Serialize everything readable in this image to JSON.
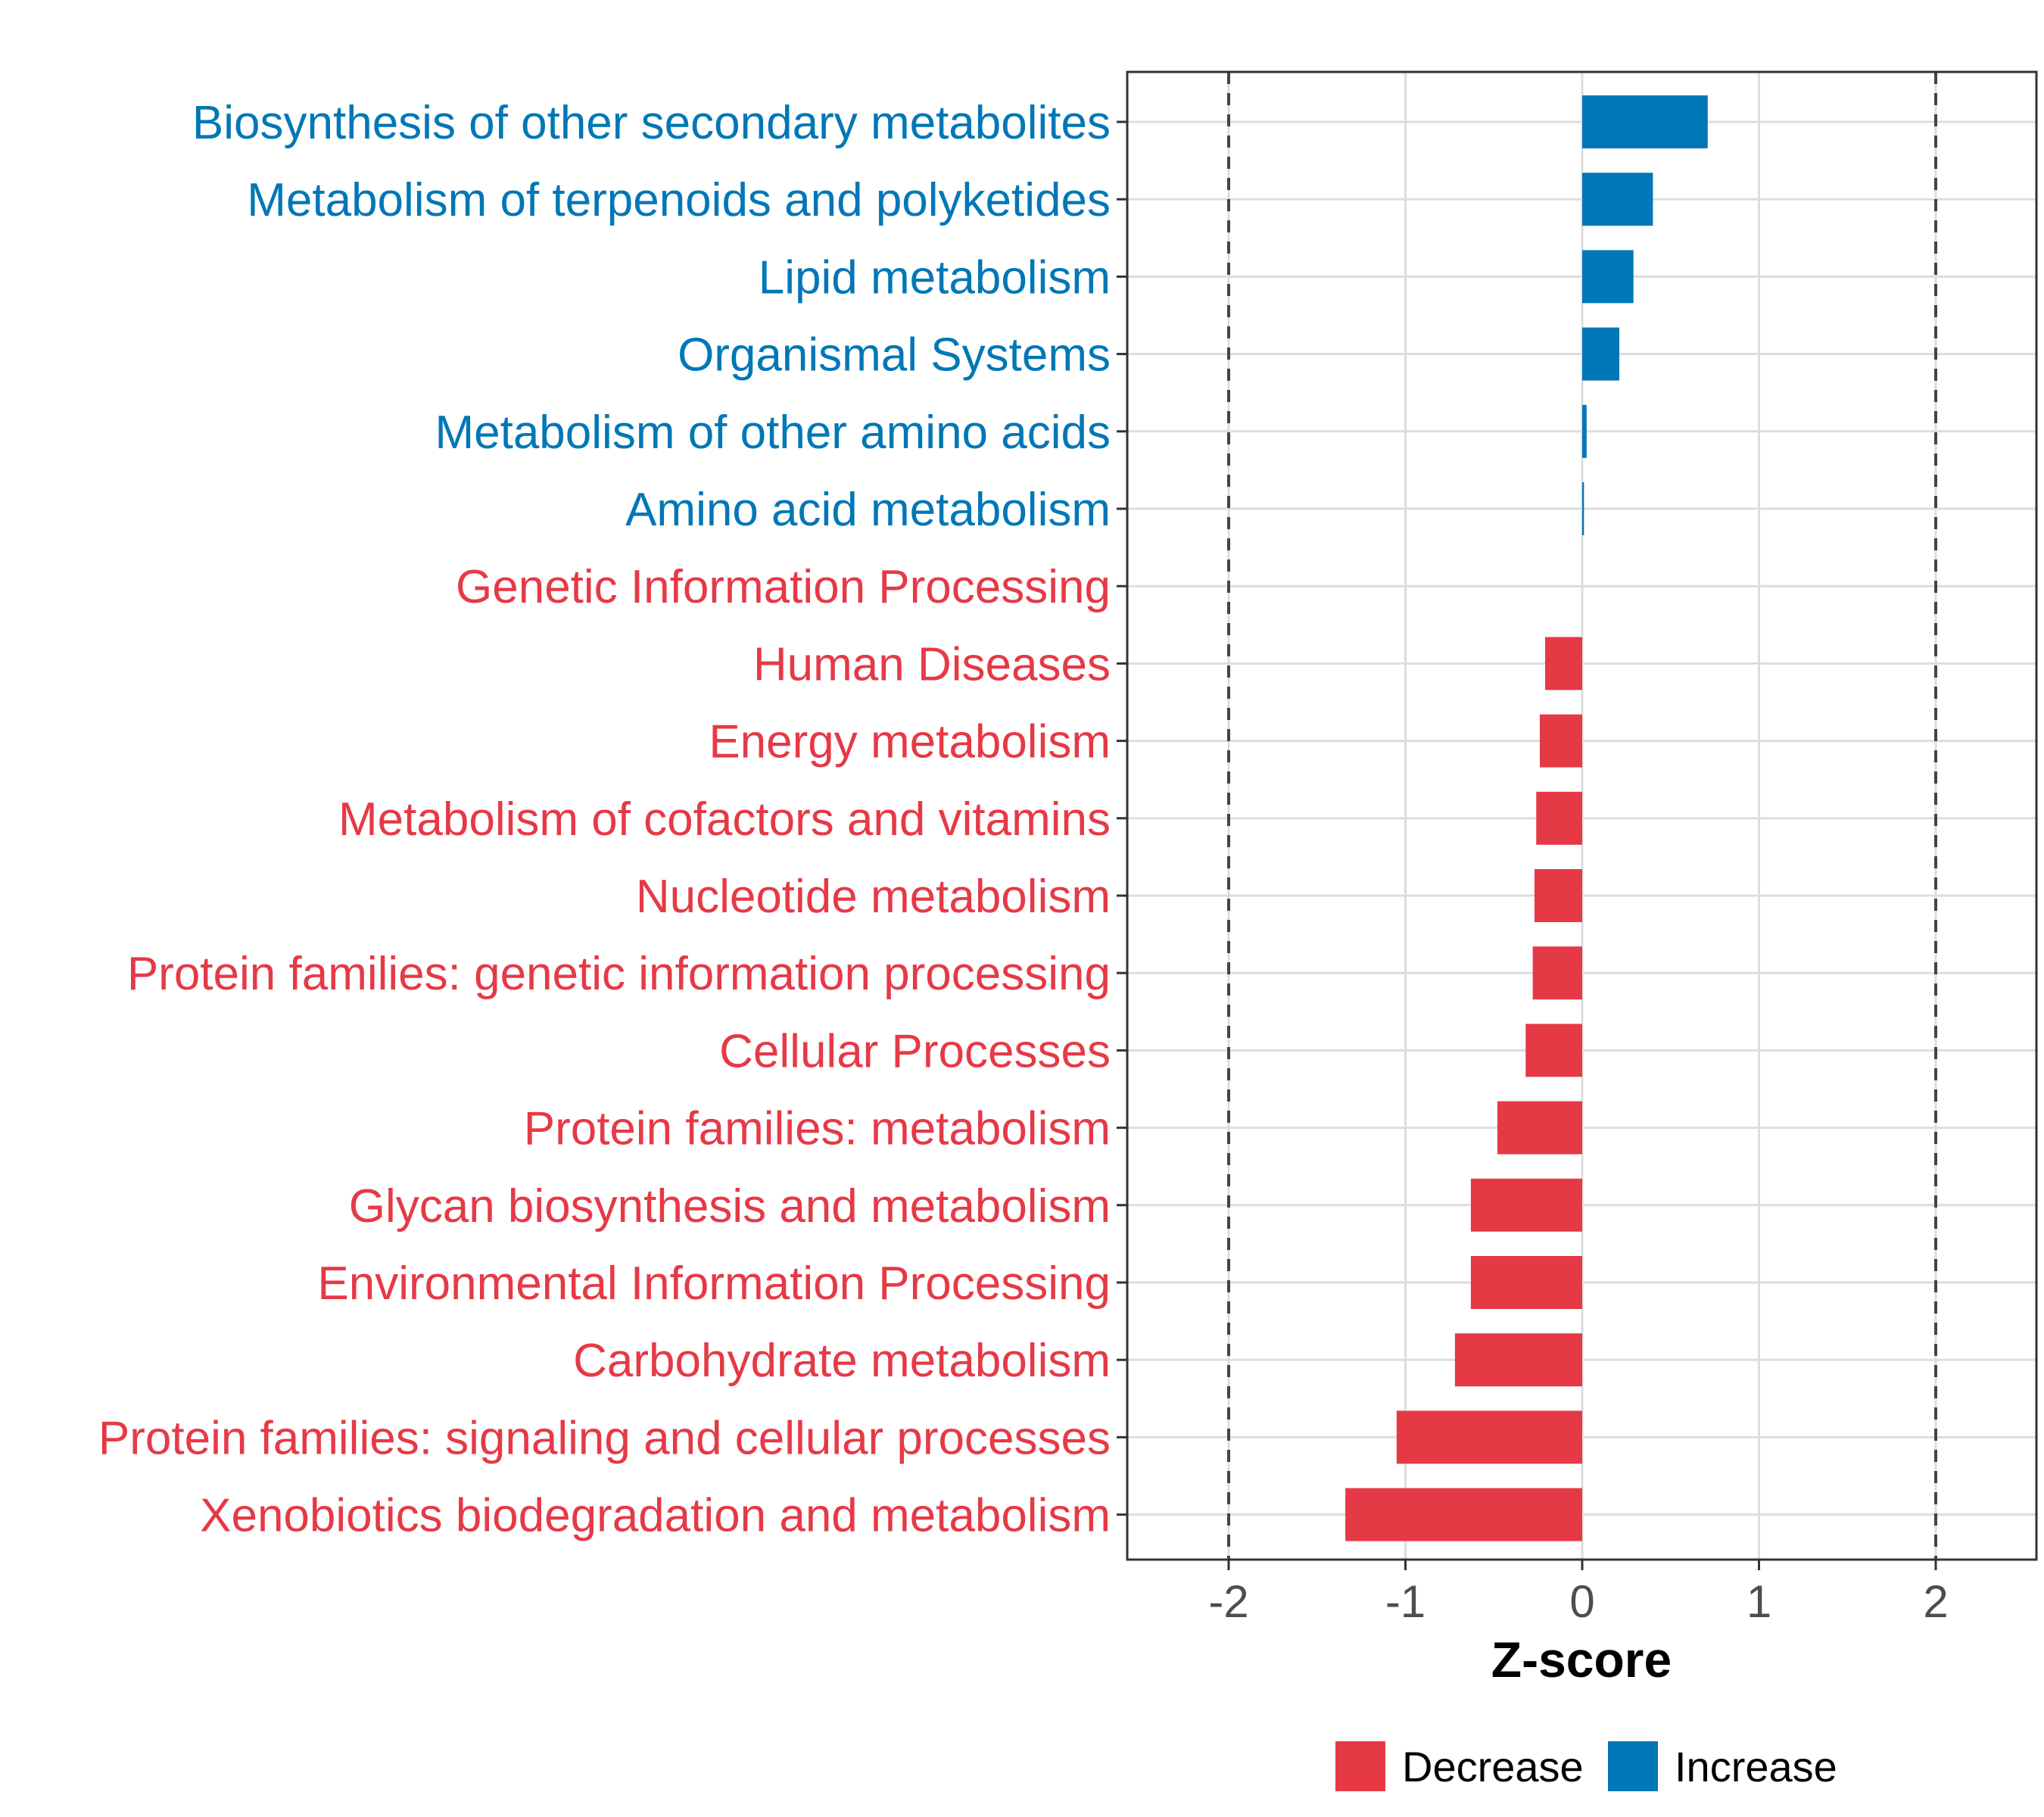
{
  "chart_data": {
    "type": "bar",
    "orientation": "horizontal",
    "xlabel": "Z-score",
    "xlim": [
      -2.55,
      2.55
    ],
    "xticks": [
      -2,
      -1,
      0,
      1,
      2
    ],
    "xtick_labels": [
      "-2",
      "-1",
      "0",
      "1",
      "2"
    ],
    "reference_lines": [
      -2,
      2
    ],
    "grid": true,
    "colors": {
      "Decrease": "#e63946",
      "Increase": "#0077b6"
    },
    "categories": [
      "Biosynthesis of other secondary metabolites",
      "Metabolism of terpenoids and polyketides",
      "Lipid metabolism",
      "Organismal Systems",
      "Metabolism of other amino acids",
      "Amino acid metabolism",
      "Genetic Information Processing",
      "Human Diseases",
      "Energy metabolism",
      "Metabolism of cofactors and vitamins",
      "Nucleotide metabolism",
      "Protein families: genetic information processing",
      "Cellular Processes",
      "Protein families: metabolism",
      "Glycan biosynthesis and metabolism",
      "Environmental Information Processing",
      "Carbohydrate metabolism",
      "Protein families: signaling and cellular processes",
      "Xenobiotics biodegradation and metabolism"
    ],
    "values": [
      0.71,
      0.4,
      0.29,
      0.21,
      0.025,
      0.01,
      0.0,
      -0.21,
      -0.24,
      -0.26,
      -0.27,
      -0.28,
      -0.32,
      -0.48,
      -0.63,
      -0.63,
      -0.72,
      -1.05,
      -1.34
    ],
    "groups": [
      "Increase",
      "Increase",
      "Increase",
      "Increase",
      "Increase",
      "Increase",
      "Decrease",
      "Decrease",
      "Decrease",
      "Decrease",
      "Decrease",
      "Decrease",
      "Decrease",
      "Decrease",
      "Decrease",
      "Decrease",
      "Decrease",
      "Decrease",
      "Decrease"
    ],
    "legend": {
      "position": "bottom",
      "items": [
        {
          "label": "Decrease",
          "color": "#e63946"
        },
        {
          "label": "Increase",
          "color": "#0077b6"
        }
      ]
    }
  }
}
